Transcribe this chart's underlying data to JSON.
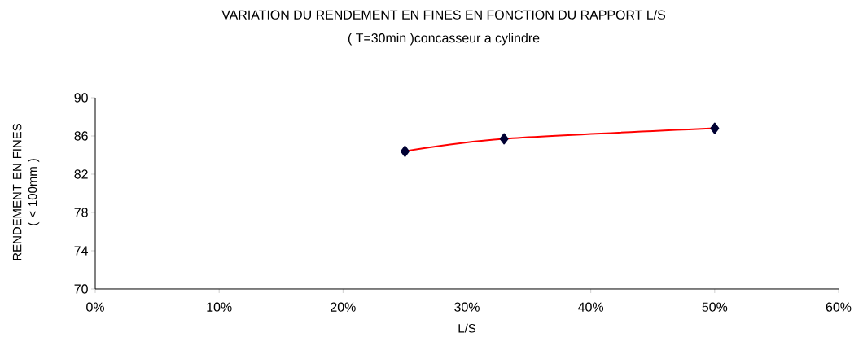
{
  "chart_data": {
    "type": "line",
    "title": "VARIATION DU RENDEMENT EN  FINES EN FONCTION DU RAPPORT L/S",
    "subtitle": "( T=30min )concasseur a cylindre",
    "xlabel": "L/S",
    "ylabel": "RENDEMENT EN  FINES\n( < 100mm )",
    "x": [
      25,
      33,
      50
    ],
    "series": [
      {
        "color": "#ff0000",
        "values": [
          84.4,
          85.7,
          86.8
        ]
      }
    ],
    "xlim": [
      0,
      60
    ],
    "ylim": [
      70,
      90
    ],
    "xticks": [
      {
        "value": 0,
        "label": "0%"
      },
      {
        "value": 10,
        "label": "10%"
      },
      {
        "value": 20,
        "label": "20%"
      },
      {
        "value": 30,
        "label": "30%"
      },
      {
        "value": 40,
        "label": "40%"
      },
      {
        "value": 50,
        "label": "50%"
      },
      {
        "value": 60,
        "label": "60%"
      }
    ],
    "yticks": [
      70,
      74,
      78,
      82,
      86,
      90
    ],
    "grid": false,
    "legend": false,
    "marker": "diamond",
    "line_style": "solid"
  }
}
